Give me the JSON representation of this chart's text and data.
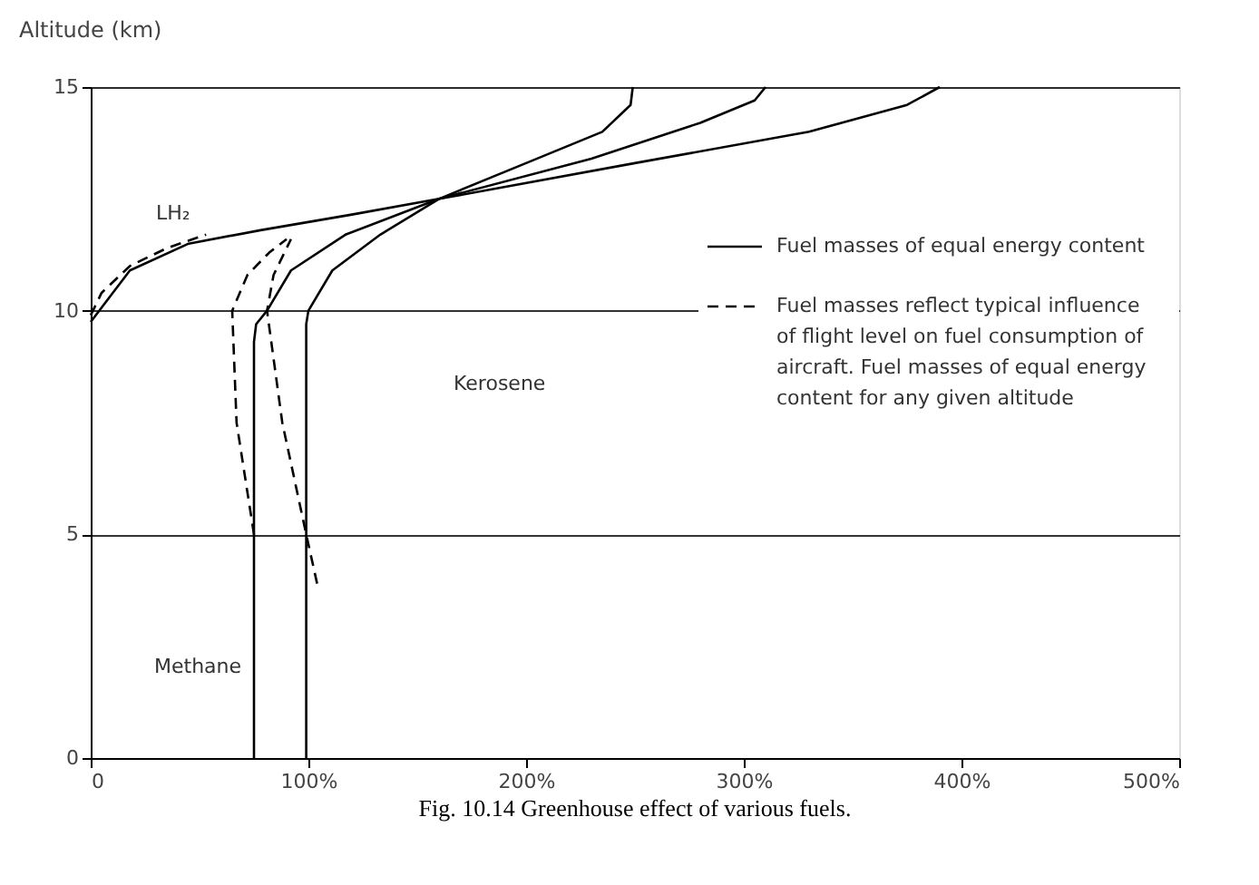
{
  "chart_data": {
    "type": "line",
    "title": "Fig. 10.14 Greenhouse effect of various fuels.",
    "ylabel": "Altitude (km)",
    "xlim": [
      0,
      500
    ],
    "ylim": [
      0,
      15
    ],
    "xticks": [
      0,
      {
        "value": 100,
        "label": "100%"
      },
      {
        "value": 200,
        "label": "200%"
      },
      {
        "value": 300,
        "label": "300%"
      },
      {
        "value": 400,
        "label": "400%"
      },
      {
        "value": 500,
        "label": "500%"
      }
    ],
    "yticks": [
      0,
      5,
      10,
      15
    ],
    "grid": "y",
    "legend": "right",
    "marker": "none",
    "series": [
      {
        "name": "Fuel masses of equal energy content",
        "color": "#000000",
        "line_style": "solid",
        "x": [
          0,
          18,
          45,
          78,
          120,
          160,
          250,
          330,
          375,
          390
        ],
        "values": [
          9.75,
          10.9,
          11.5,
          11.8,
          12.15,
          12.5,
          13.3,
          14.0,
          14.6,
          15
        ]
      },
      {
        "color": "#000000",
        "line_style": "solid",
        "x": [
          75,
          75,
          76,
          81,
          92,
          117,
          160,
          230,
          280,
          305,
          310
        ],
        "values": [
          0,
          9.3,
          9.7,
          10,
          10.9,
          11.7,
          12.5,
          13.4,
          14.2,
          14.7,
          15
        ]
      },
      {
        "color": "#000000",
        "line_style": "solid",
        "x": [
          99,
          99,
          100,
          111,
          133,
          160,
          200,
          235,
          248,
          249
        ],
        "values": [
          0,
          9.7,
          10,
          10.9,
          11.7,
          12.5,
          13.3,
          14.0,
          14.6,
          15
        ]
      },
      {
        "name": "Fuel masses reflect typical influence of flight level on fuel consumption of aircraft. Fuel masses of equal energy content for any given altitude",
        "color": "#000000",
        "line_style": "dashed",
        "x": [
          0,
          5,
          18,
          35,
          53
        ],
        "values": [
          9.9,
          10.4,
          11.0,
          11.4,
          11.7
        ]
      },
      {
        "color": "#000000",
        "line_style": "dashed",
        "x": [
          75,
          67,
          65,
          72,
          82,
          90
        ],
        "values": [
          5,
          7.5,
          10,
          10.8,
          11.3,
          11.6
        ]
      },
      {
        "color": "#000000",
        "line_style": "dashed",
        "x": [
          104,
          99,
          88,
          81,
          84,
          92
        ],
        "values": [
          3.9,
          5,
          7.5,
          10,
          10.8,
          11.6
        ]
      }
    ],
    "annotations": [
      "LH₂",
      "Kerosene",
      "Methane"
    ]
  }
}
